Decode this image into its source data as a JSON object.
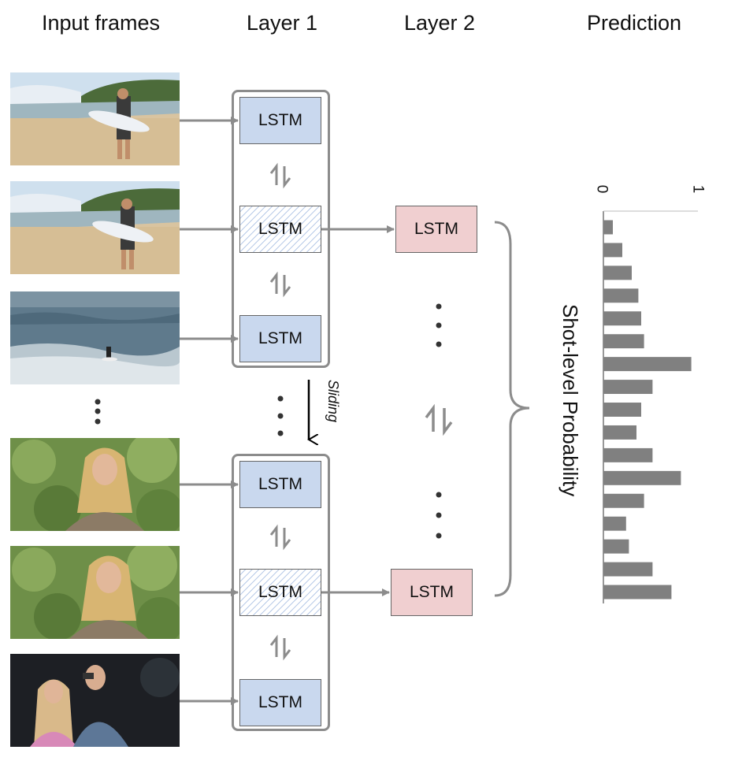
{
  "headers": {
    "input_frames": "Input frames",
    "layer1": "Layer 1",
    "layer2": "Layer 2",
    "prediction": "Prediction"
  },
  "lstm_label": "LSTM",
  "sliding_label": "Sliding",
  "axis_label": "Shot-level Probability",
  "frames": [
    {
      "scene": "beach-surfer"
    },
    {
      "scene": "beach-surfer"
    },
    {
      "scene": "wave-surfing"
    },
    {
      "scene": "woman-foliage"
    },
    {
      "scene": "woman-foliage"
    },
    {
      "scene": "couple-night"
    }
  ],
  "colors": {
    "lstm_layer1": "#c9d8ee",
    "lstm_layer2": "#f0cfd0",
    "arrows": "#8c8c8c",
    "bars": "#808080"
  },
  "chart_data": {
    "type": "bar",
    "orientation": "horizontal",
    "title": "",
    "xlabel": "Shot-level Probability",
    "xlim": [
      0,
      1
    ],
    "tick_labels": [
      "0",
      "1"
    ],
    "values": [
      0.1,
      0.2,
      0.3,
      0.37,
      0.4,
      0.43,
      0.93,
      0.52,
      0.4,
      0.35,
      0.52,
      0.82,
      0.43,
      0.24,
      0.27,
      0.52,
      0.72
    ]
  }
}
